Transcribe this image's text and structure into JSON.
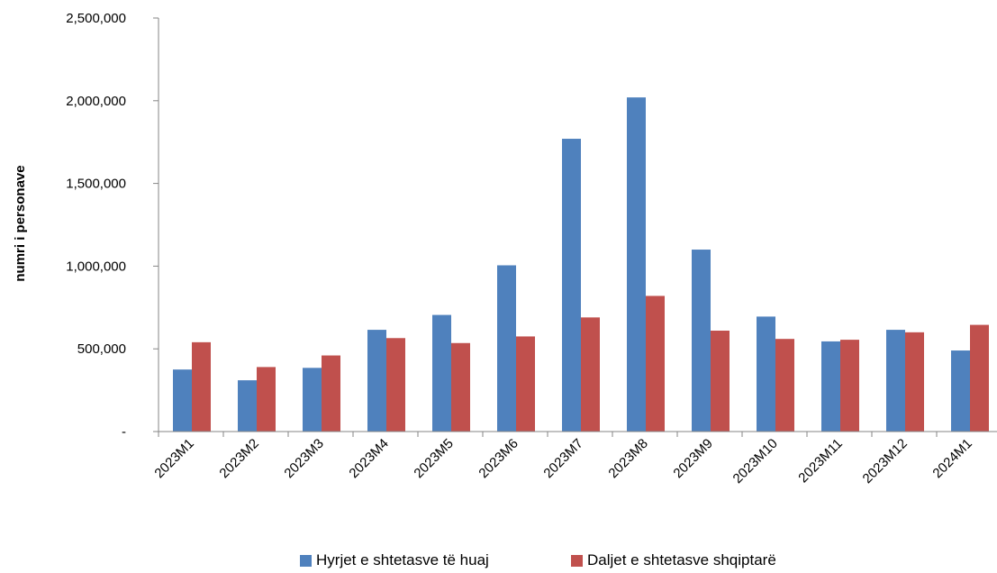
{
  "chart_data": {
    "type": "bar",
    "ylabel": "numri i personave",
    "xlabel": "",
    "ylim": [
      0,
      2500000
    ],
    "yticks": [
      0,
      500000,
      1000000,
      1500000,
      2000000,
      2500000
    ],
    "ytick_labels": [
      "-",
      "500,000",
      "1,000,000",
      "1,500,000",
      "2,000,000",
      "2,500,000"
    ],
    "categories": [
      "2023M1",
      "2023M2",
      "2023M3",
      "2023M4",
      "2023M5",
      "2023M6",
      "2023M7",
      "2023M8",
      "2023M9",
      "2023M10",
      "2023M11",
      "2023M12",
      "2024M1"
    ],
    "series": [
      {
        "name": "Hyrjet e shtetasve të huaj",
        "color": "#4f81bd",
        "values": [
          375000,
          310000,
          385000,
          615000,
          705000,
          1005000,
          1770000,
          2020000,
          1100000,
          695000,
          545000,
          615000,
          490000
        ]
      },
      {
        "name": "Daljet e shtetasve shqiptarë",
        "color": "#c0504d",
        "values": [
          540000,
          390000,
          460000,
          565000,
          535000,
          575000,
          690000,
          820000,
          610000,
          560000,
          555000,
          600000,
          645000
        ]
      }
    ],
    "legend_position": "bottom",
    "grid": false
  }
}
